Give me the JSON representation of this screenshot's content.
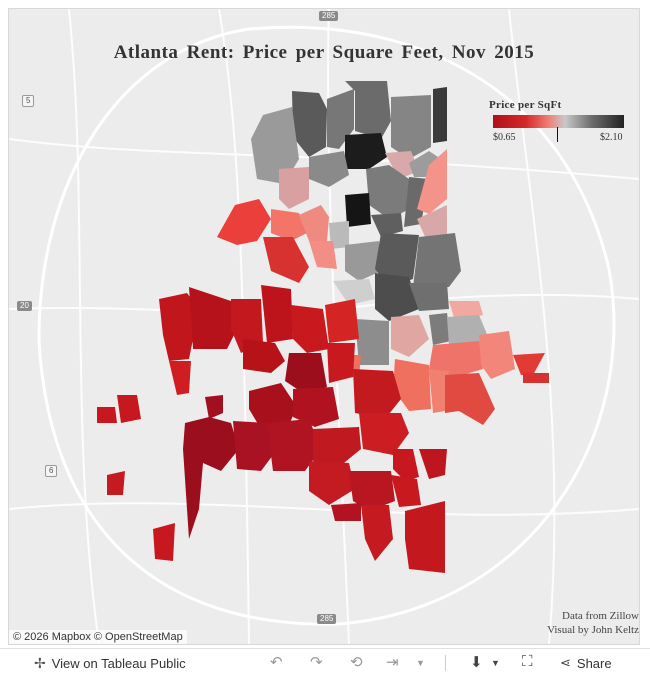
{
  "title": "Atlanta Rent: Price per Square Feet, Nov 2015",
  "legend": {
    "title": "Price per SqFt",
    "min_label": "$0.65",
    "max_label": "$2.10",
    "colors": [
      "#b0101a",
      "#d42828",
      "#f07c72",
      "#c8c8c8",
      "#6e6e6e",
      "#222222"
    ]
  },
  "credits": {
    "line1": "Data from Zillow",
    "line2": "Visual by John Keltz"
  },
  "attribution": "© 2026 Mapbox  © OpenStreetMap",
  "road_labels": {
    "i285_top": "285",
    "i285_bottom": "285",
    "i20": "20",
    "r5": "5",
    "r6": "6"
  },
  "toolbar": {
    "view_label": "View on Tableau Public",
    "share_label": "Share"
  }
}
